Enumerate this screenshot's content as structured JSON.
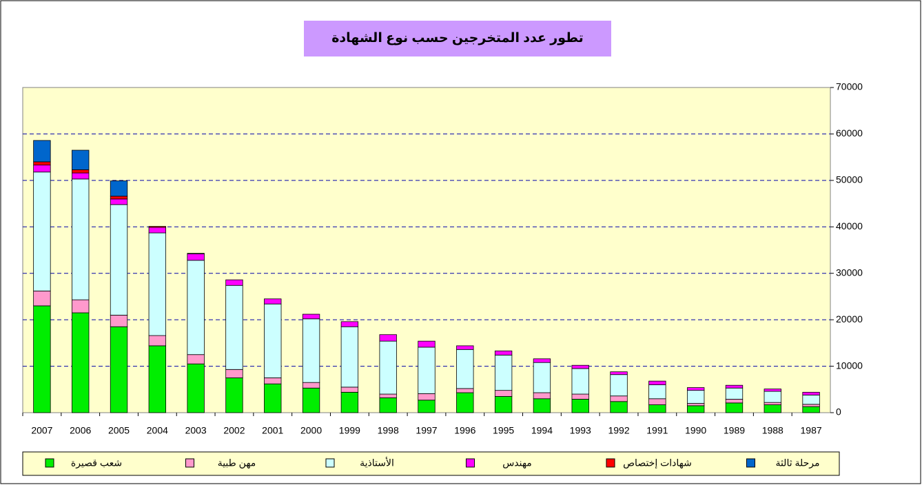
{
  "chart_data": {
    "type": "stacked_bar",
    "title": "تطور عدد المتخرجين حسب نوع الشهادة",
    "categories": [
      "2007",
      "2006",
      "2005",
      "2004",
      "2003",
      "2002",
      "2001",
      "2000",
      "1999",
      "1998",
      "1997",
      "1996",
      "1995",
      "1994",
      "1993",
      "1992",
      "1991",
      "1990",
      "1989",
      "1988",
      "1987"
    ],
    "series": [
      {
        "name": "شعب قصيرة",
        "color": "#00ee00",
        "values": [
          23000,
          21500,
          18500,
          14400,
          10500,
          7500,
          6200,
          5300,
          4400,
          3200,
          2700,
          4300,
          3500,
          3000,
          2900,
          2400,
          1700,
          1500,
          2100,
          1700,
          1300
        ]
      },
      {
        "name": "مهن طبية",
        "color": "#ff99cc",
        "values": [
          3200,
          2800,
          2500,
          2200,
          2000,
          1800,
          1300,
          1200,
          1100,
          800,
          1400,
          900,
          1300,
          1300,
          1100,
          1200,
          1300,
          500,
          800,
          500,
          500
        ]
      },
      {
        "name": "الأستاذية",
        "color": "#ccffff",
        "values": [
          25600,
          26000,
          23800,
          22100,
          20300,
          18100,
          15900,
          13700,
          13000,
          11400,
          10000,
          8400,
          7600,
          6500,
          5500,
          4600,
          3000,
          2800,
          2400,
          2400,
          2000
        ]
      },
      {
        "name": "مهندس",
        "color": "#ff00ff",
        "values": [
          1500,
          1300,
          1200,
          1200,
          1400,
          1200,
          1100,
          1000,
          1100,
          1400,
          1300,
          800,
          900,
          800,
          700,
          600,
          800,
          600,
          600,
          500,
          600
        ]
      },
      {
        "name": "شهادات إختصاص",
        "color": "#ff0000",
        "values": [
          700,
          700,
          600,
          200,
          100,
          0,
          0,
          0,
          0,
          0,
          0,
          0,
          0,
          0,
          0,
          0,
          0,
          0,
          0,
          0,
          0
        ]
      },
      {
        "name": "مرحلة ثالثة",
        "color": "#0066cc",
        "values": [
          4600,
          4200,
          3300,
          0,
          0,
          0,
          0,
          0,
          0,
          0,
          0,
          0,
          0,
          0,
          0,
          0,
          0,
          0,
          0,
          0,
          0
        ]
      }
    ],
    "ylim": [
      0,
      70000
    ],
    "yticks": [
      0,
      10000,
      20000,
      30000,
      40000,
      50000,
      60000,
      70000
    ],
    "grid": true,
    "legend": "bottom"
  }
}
